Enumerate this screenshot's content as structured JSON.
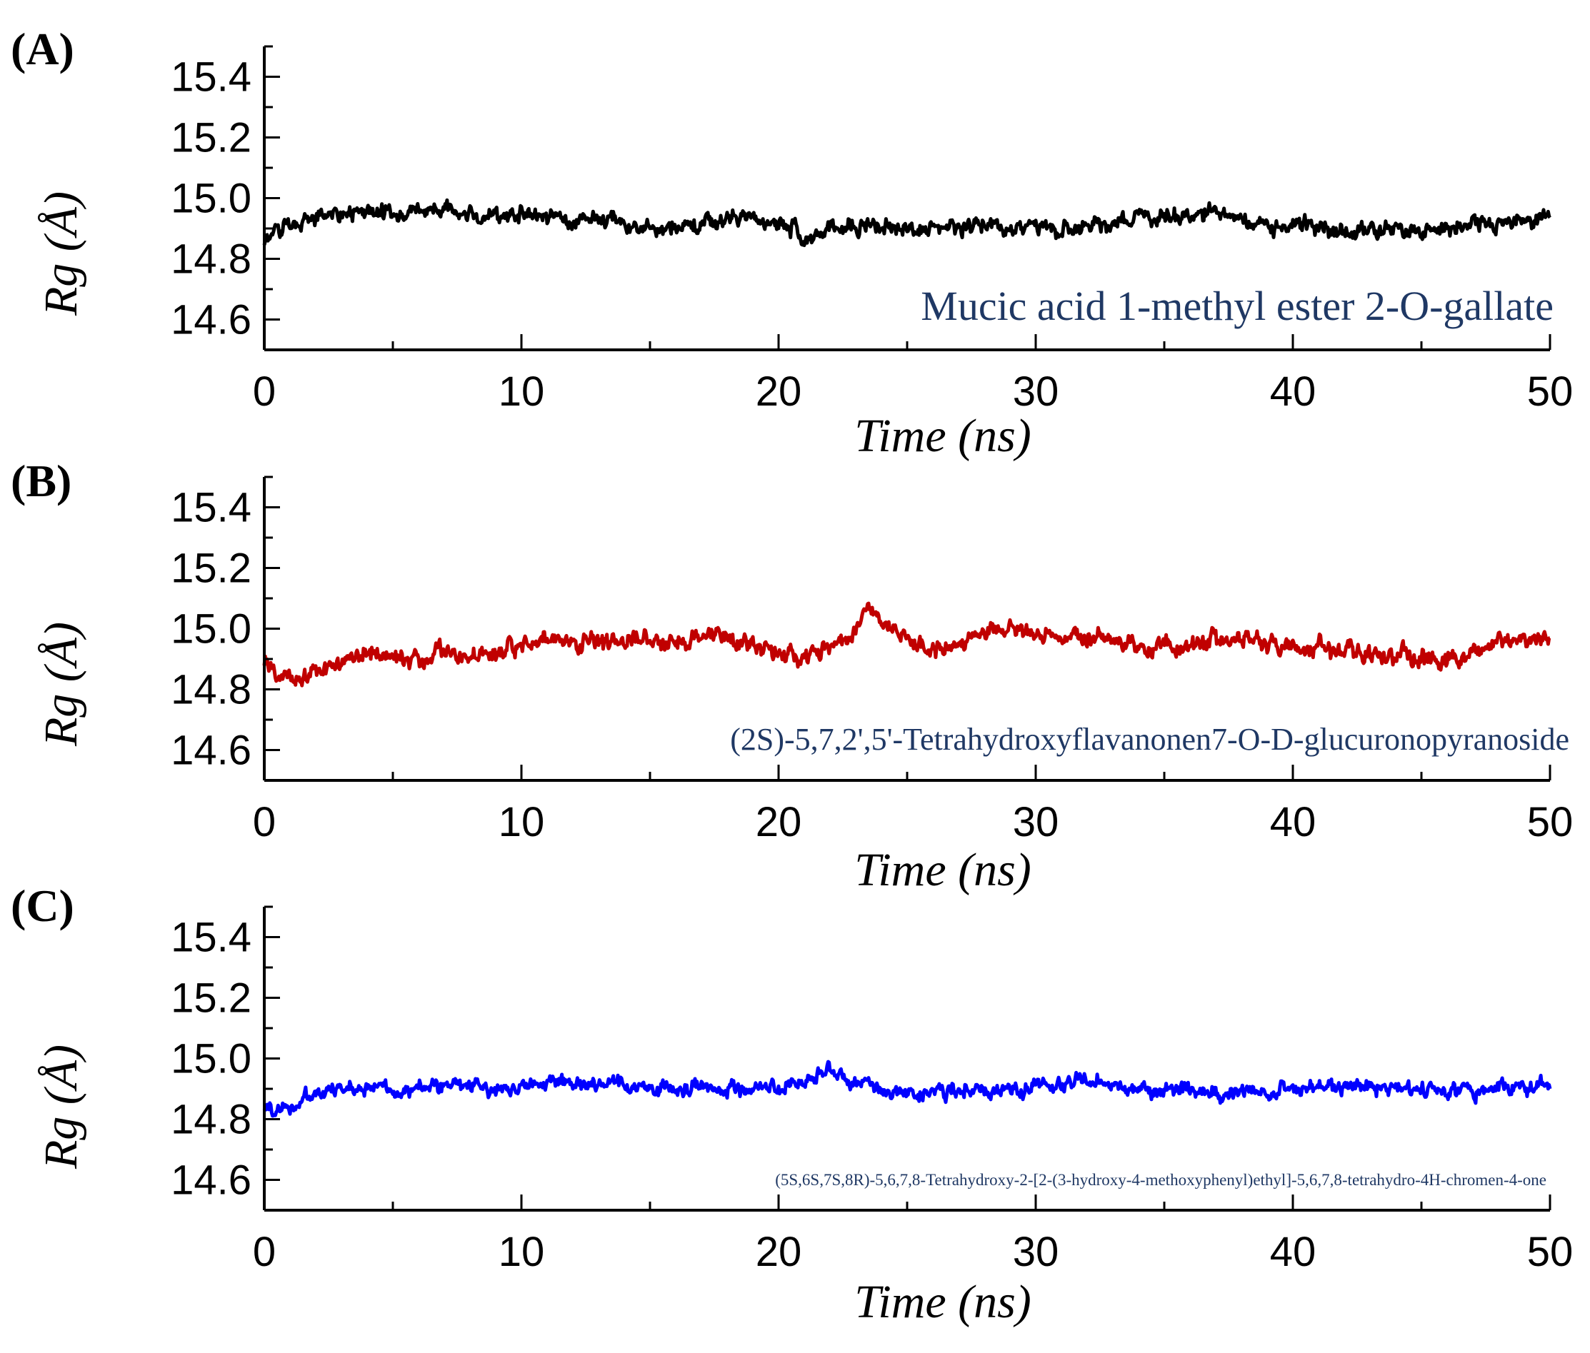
{
  "figure": {
    "background": "#ffffff",
    "annotation_color": "#1f3864"
  },
  "chart_data": [
    {
      "type": "line",
      "panel_label": "(A)",
      "xlabel": "Time (ns)",
      "ylabel": "Rg (Å)",
      "xlim": [
        0,
        50
      ],
      "ylim": [
        14.5,
        15.5
      ],
      "x_ticks": [
        0,
        10,
        20,
        30,
        40,
        50
      ],
      "y_ticks": [
        14.6,
        14.8,
        15.0,
        15.2,
        15.4
      ],
      "y_tick_labels": [
        "14.6",
        "14.8",
        "15.0",
        "15.2",
        "15.4"
      ],
      "annotation": "Mucic acid 1-methyl ester 2-O-gallate",
      "series": [
        {
          "name": "Mucic acid 1-methyl ester 2-O-gallate",
          "color": "#000000",
          "x": [
            0,
            0.5,
            1,
            1.5,
            2,
            2.5,
            3,
            4,
            5,
            6,
            7,
            8,
            9,
            10,
            11,
            12,
            13,
            14,
            15,
            16,
            17,
            18,
            19,
            20,
            21,
            22,
            23,
            24,
            25,
            26,
            27,
            28,
            29,
            30,
            31,
            32,
            33,
            34,
            35,
            36,
            37,
            38,
            39,
            40,
            41,
            42,
            43,
            44,
            45,
            46,
            47,
            48,
            49,
            50
          ],
          "y": [
            14.86,
            14.89,
            14.91,
            14.93,
            14.94,
            14.95,
            14.95,
            14.95,
            14.94,
            14.96,
            14.96,
            14.94,
            14.94,
            14.95,
            14.94,
            14.93,
            14.93,
            14.92,
            14.89,
            14.9,
            14.91,
            14.93,
            14.93,
            14.92,
            14.88,
            14.9,
            14.91,
            14.91,
            14.89,
            14.9,
            14.9,
            14.91,
            14.9,
            14.91,
            14.9,
            14.9,
            14.92,
            14.94,
            14.94,
            14.94,
            14.95,
            14.93,
            14.91,
            14.91,
            14.9,
            14.89,
            14.9,
            14.9,
            14.89,
            14.9,
            14.92,
            14.92,
            14.93,
            14.93
          ],
          "noise": 0.05
        }
      ]
    },
    {
      "type": "line",
      "panel_label": "(B)",
      "xlabel": "Time (ns)",
      "ylabel": "Rg (Å)",
      "xlim": [
        0,
        50
      ],
      "ylim": [
        14.5,
        15.5
      ],
      "x_ticks": [
        0,
        10,
        20,
        30,
        40,
        50
      ],
      "y_ticks": [
        14.6,
        14.8,
        15.0,
        15.2,
        15.4
      ],
      "y_tick_labels": [
        "14.6",
        "14.8",
        "15.0",
        "15.2",
        "15.4"
      ],
      "annotation": "(2S)-5,7,2',5'-Tetrahydroxyflavanonen7-O-D-glucuronopyranoside",
      "series": [
        {
          "name": "(2S)-5,7,2',5'-Tetrahydroxyflavanonen7-O-D-glucuronopyranoside",
          "color": "#c00000",
          "x": [
            0,
            0.5,
            1,
            1.5,
            2,
            3,
            4,
            5,
            6,
            7,
            8,
            9,
            10,
            11,
            12,
            13,
            14,
            15,
            16,
            17,
            18,
            19,
            20,
            21,
            22,
            23,
            23.5,
            24,
            25,
            26,
            27,
            28,
            29,
            30,
            31,
            32,
            33,
            34,
            35,
            36,
            37,
            38,
            39,
            40,
            41,
            42,
            43,
            44,
            45,
            46,
            47,
            48,
            49,
            50
          ],
          "y": [
            14.88,
            14.86,
            14.83,
            14.84,
            14.86,
            14.89,
            14.92,
            14.91,
            14.9,
            14.93,
            14.9,
            14.92,
            14.95,
            14.97,
            14.96,
            14.95,
            14.95,
            14.96,
            14.96,
            14.98,
            14.98,
            14.95,
            14.92,
            14.9,
            14.93,
            15.0,
            15.07,
            15.03,
            14.96,
            14.93,
            14.95,
            14.98,
            15.0,
            14.99,
            14.97,
            14.97,
            14.97,
            14.94,
            14.95,
            14.94,
            14.96,
            14.96,
            14.95,
            14.93,
            14.94,
            14.92,
            14.92,
            14.91,
            14.9,
            14.89,
            14.92,
            14.96,
            14.97,
            14.98
          ],
          "noise": 0.055
        }
      ]
    },
    {
      "type": "line",
      "panel_label": "(C)",
      "xlabel": "Time (ns)",
      "ylabel": "Rg (Å)",
      "xlim": [
        0,
        50
      ],
      "ylim": [
        14.5,
        15.5
      ],
      "x_ticks": [
        0,
        10,
        20,
        30,
        40,
        50
      ],
      "y_ticks": [
        14.6,
        14.8,
        15.0,
        15.2,
        15.4
      ],
      "y_tick_labels": [
        "14.6",
        "14.8",
        "15.0",
        "15.2",
        "15.4"
      ],
      "annotation": "(5S,6S,7S,8R)-5,6,7,8-Tetrahydroxy-2-[2-(3-hydroxy-4-methoxyphenyl)ethyl]-5,6,7,8-tetrahydro-4H-chromen-4-one",
      "series": [
        {
          "name": "(5S,6S,7S,8R)-5,6,7,8-Tetrahydroxy-2-[2-(3-hydroxy-4-methoxyphenyl)ethyl]-5,6,7,8-tetrahydro-4H-chromen-4-one",
          "color": "#0000ff",
          "x": [
            0,
            0.5,
            1,
            1.5,
            2,
            3,
            4,
            5,
            6,
            7,
            8,
            9,
            10,
            11,
            12,
            13,
            14,
            15,
            16,
            17,
            18,
            19,
            20,
            21,
            22,
            23,
            24,
            25,
            26,
            27,
            28,
            29,
            30,
            31,
            32,
            33,
            34,
            35,
            36,
            37,
            38,
            39,
            40,
            41,
            42,
            43,
            44,
            45,
            46,
            47,
            48,
            49,
            50
          ],
          "y": [
            14.84,
            14.83,
            14.84,
            14.86,
            14.88,
            14.9,
            14.91,
            14.9,
            14.9,
            14.91,
            14.91,
            14.9,
            14.91,
            14.92,
            14.92,
            14.91,
            14.91,
            14.9,
            14.9,
            14.91,
            14.9,
            14.9,
            14.9,
            14.91,
            14.96,
            14.92,
            14.9,
            14.89,
            14.89,
            14.9,
            14.89,
            14.89,
            14.91,
            14.91,
            14.93,
            14.91,
            14.9,
            14.9,
            14.9,
            14.89,
            14.88,
            14.88,
            14.9,
            14.91,
            14.91,
            14.9,
            14.91,
            14.89,
            14.89,
            14.9,
            14.91,
            14.91,
            14.9
          ],
          "noise": 0.045
        }
      ]
    }
  ]
}
